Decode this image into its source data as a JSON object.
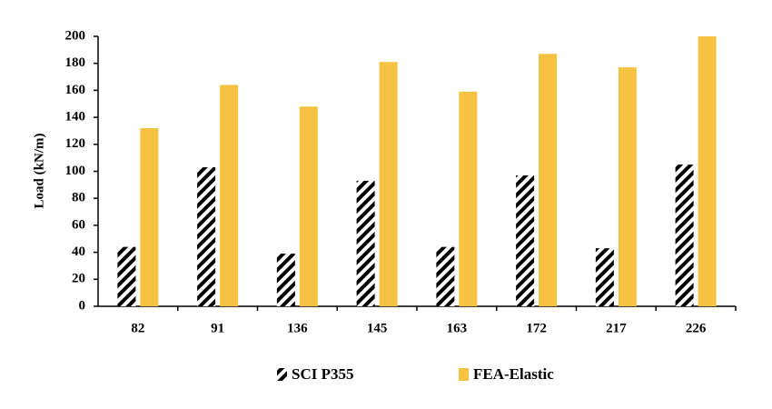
{
  "chart_data": {
    "type": "bar",
    "y_label": "Load (kN/m)",
    "categories": [
      "82",
      "91",
      "136",
      "145",
      "163",
      "172",
      "217",
      "226"
    ],
    "series": [
      {
        "name": "SCI P355",
        "color": "#000000",
        "hatch": true,
        "values": [
          44,
          103,
          39,
          93,
          44,
          97,
          43,
          105
        ]
      },
      {
        "name": "FEA-Elastic",
        "color": "#f5c242",
        "hatch": false,
        "values": [
          132,
          164,
          148,
          181,
          159,
          187,
          177,
          200
        ]
      }
    ],
    "ylim": [
      0,
      200
    ],
    "yticks": [
      0,
      20,
      40,
      60,
      80,
      100,
      120,
      140,
      160,
      180,
      200
    ],
    "grid": false
  }
}
